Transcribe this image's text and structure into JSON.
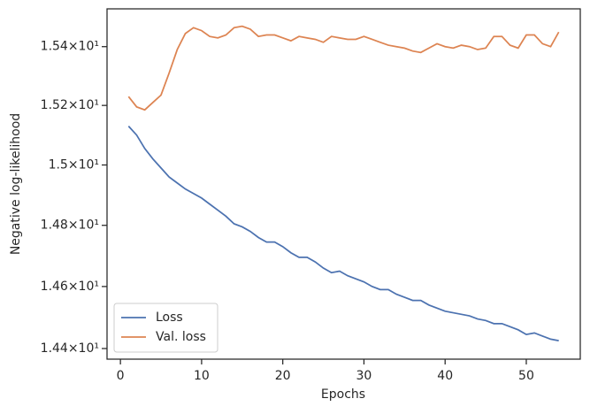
{
  "chart_data": {
    "type": "line",
    "xlabel": "Epochs",
    "ylabel": "Negative log-likelihood",
    "x": [
      1,
      2,
      3,
      4,
      5,
      6,
      7,
      8,
      9,
      10,
      11,
      12,
      13,
      14,
      15,
      16,
      17,
      18,
      19,
      20,
      21,
      22,
      23,
      24,
      25,
      26,
      27,
      28,
      29,
      30,
      31,
      32,
      33,
      34,
      35,
      36,
      37,
      38,
      39,
      40,
      41,
      42,
      43,
      44,
      45,
      46,
      47,
      48,
      49,
      50,
      51,
      52,
      53,
      54
    ],
    "series": [
      {
        "name": "Loss",
        "color": "#4c72b0",
        "values": [
          15.13,
          15.1,
          15.055,
          15.02,
          14.99,
          14.96,
          14.94,
          14.92,
          14.905,
          14.89,
          14.87,
          14.85,
          14.83,
          14.805,
          14.795,
          14.78,
          14.76,
          14.745,
          14.745,
          14.73,
          14.71,
          14.695,
          14.695,
          14.68,
          14.66,
          14.645,
          14.65,
          14.635,
          14.625,
          14.615,
          14.6,
          14.59,
          14.59,
          14.575,
          14.565,
          14.555,
          14.555,
          14.54,
          14.53,
          14.52,
          14.515,
          14.51,
          14.505,
          14.495,
          14.49,
          14.48,
          14.48,
          14.47,
          14.46,
          14.445,
          14.45,
          14.44,
          14.43,
          14.425
        ]
      },
      {
        "name": "Val. loss",
        "color": "#dd8452",
        "values": [
          15.23,
          15.195,
          15.185,
          15.21,
          15.235,
          15.31,
          15.39,
          15.445,
          15.465,
          15.455,
          15.435,
          15.43,
          15.44,
          15.465,
          15.47,
          15.46,
          15.435,
          15.44,
          15.44,
          15.43,
          15.42,
          15.435,
          15.43,
          15.425,
          15.415,
          15.435,
          15.43,
          15.425,
          15.425,
          15.435,
          15.425,
          15.415,
          15.405,
          15.4,
          15.395,
          15.385,
          15.38,
          15.395,
          15.41,
          15.4,
          15.395,
          15.405,
          15.4,
          15.39,
          15.395,
          15.435,
          15.435,
          15.405,
          15.395,
          15.44,
          15.44,
          15.41,
          15.4,
          15.45
        ]
      }
    ],
    "xlim": [
      -1.65,
      56.65
    ],
    "xticks": [
      0,
      10,
      20,
      30,
      40,
      50
    ],
    "ylim": [
      14.366,
      15.53
    ],
    "log_scale": true,
    "yticks": [
      {
        "value": 14.4,
        "label": "1.44×10¹"
      },
      {
        "value": 14.6,
        "label": "1.46×10¹"
      },
      {
        "value": 14.8,
        "label": "1.48×10¹"
      },
      {
        "value": 15.0,
        "label": "1.5×10¹"
      },
      {
        "value": 15.2,
        "label": "1.52×10¹"
      },
      {
        "value": 15.4,
        "label": "1.54×10¹"
      }
    ],
    "legend": "lower left"
  }
}
